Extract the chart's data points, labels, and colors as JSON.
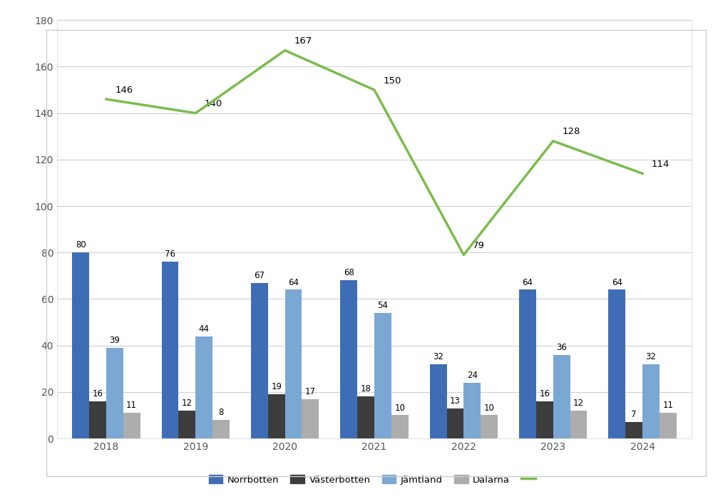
{
  "years": [
    2018,
    2019,
    2020,
    2021,
    2022,
    2023,
    2024
  ],
  "norrbotten": [
    80,
    76,
    67,
    68,
    32,
    64,
    64
  ],
  "vasterbotten": [
    16,
    12,
    19,
    18,
    13,
    16,
    7
  ],
  "jamtland": [
    39,
    44,
    64,
    54,
    24,
    36,
    32
  ],
  "dalarna": [
    11,
    8,
    17,
    10,
    10,
    12,
    11
  ],
  "total": [
    146,
    140,
    167,
    150,
    79,
    128,
    114
  ],
  "norrbotten_color": "#3E6DB5",
  "vasterbotten_color": "#3D3D3D",
  "jamtland_color": "#7BA7D4",
  "dalarna_color": "#ADADAD",
  "total_color": "#7ABD4D",
  "ylim": [
    0,
    180
  ],
  "yticks": [
    0,
    20,
    40,
    60,
    80,
    100,
    120,
    140,
    160,
    180
  ],
  "bar_width": 0.19,
  "background_color": "#FFFFFF",
  "grid_color": "#D0D0D0",
  "legend_labels": [
    "Norrbotten",
    "Västerbotten",
    "Jämtland",
    "Dalarna",
    ""
  ],
  "figure_bg": "#FFFFFF",
  "chart_box_color": "#E8E8E8",
  "total_label_offsets_x": [
    0.12,
    0.12,
    0.12,
    0.12,
    0.12,
    0.12,
    0.12
  ],
  "total_label_offsets_y": [
    3,
    3,
    3,
    3,
    3,
    3,
    3
  ]
}
